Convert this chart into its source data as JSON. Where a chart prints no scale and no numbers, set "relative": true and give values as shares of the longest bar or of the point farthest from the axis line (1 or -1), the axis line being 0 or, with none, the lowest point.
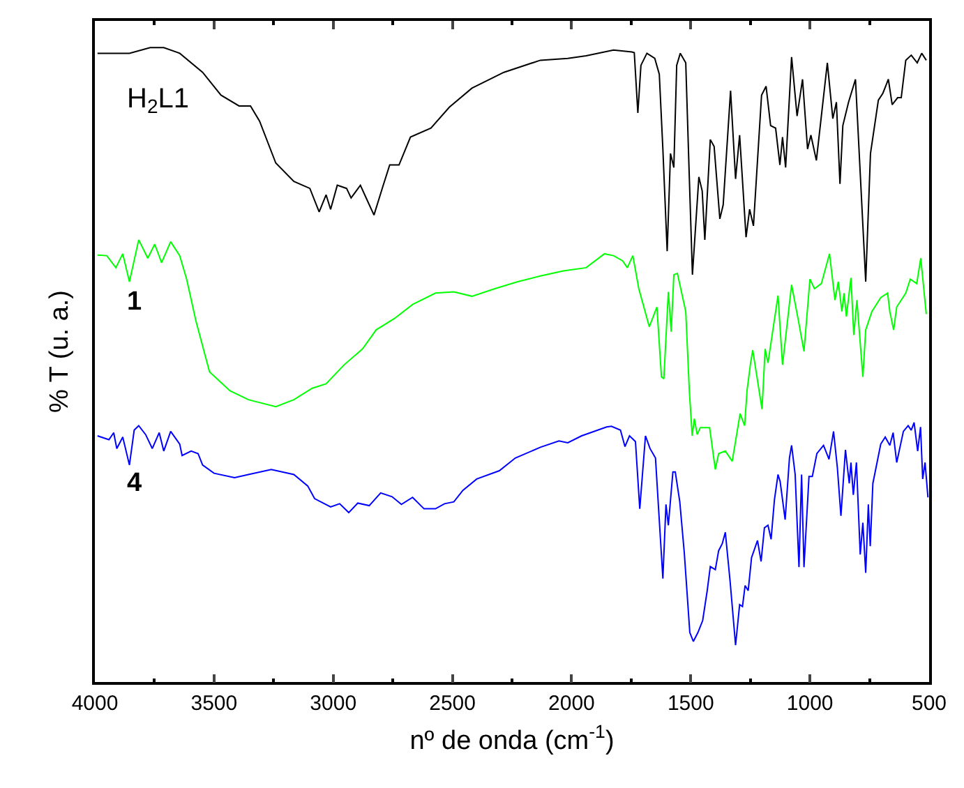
{
  "chart_data": {
    "type": "line",
    "relative": true,
    "xlabel": "nº de onda (cm$^{-1}$)",
    "ylabel": "% T (u. a.)",
    "xlim": [
      4000,
      500
    ],
    "xticks": [
      4000,
      3500,
      3000,
      2500,
      2000,
      1500,
      1000,
      500
    ],
    "legend": false,
    "marker": "none",
    "line_style": "solid",
    "series": [
      {
        "name": "H$_{2}$L1",
        "color": "#000000",
        "x": [
          3989,
          3855,
          3768,
          3711,
          3644,
          3548,
          3471,
          3395,
          3347,
          3309,
          3241,
          3165,
          3098,
          3059,
          3030,
          3011,
          2983,
          2944,
          2925,
          2886,
          2868,
          2829,
          2791,
          2763,
          2724,
          2676,
          2590,
          2513,
          2418,
          2284,
          2131,
          2016,
          1939,
          1824,
          1747,
          1737,
          1722,
          1709,
          1684,
          1651,
          1632,
          1617,
          1599,
          1585,
          1571,
          1559,
          1544,
          1521,
          1508,
          1493,
          1466,
          1452,
          1441,
          1418,
          1402,
          1378,
          1364,
          1333,
          1312,
          1295,
          1268,
          1253,
          1237,
          1203,
          1184,
          1165,
          1144,
          1126,
          1115,
          1102,
          1077,
          1054,
          1031,
          1010,
          996,
          973,
          927,
          904,
          889,
          874,
          862,
          838,
          809,
          766,
          746,
          713,
          694,
          671,
          655,
          632,
          617,
          598,
          575,
          550,
          531,
          512
        ],
        "values": [
          0.991,
          0.991,
          1.0,
          1.0,
          0.991,
          0.961,
          0.925,
          0.908,
          0.908,
          0.884,
          0.818,
          0.789,
          0.778,
          0.741,
          0.768,
          0.745,
          0.783,
          0.778,
          0.763,
          0.783,
          0.768,
          0.736,
          0.782,
          0.815,
          0.815,
          0.859,
          0.873,
          0.906,
          0.936,
          0.961,
          0.98,
          0.983,
          0.987,
          0.996,
          0.993,
          0.992,
          0.897,
          0.972,
          0.991,
          0.983,
          0.958,
          0.84,
          0.679,
          0.833,
          0.811,
          0.972,
          0.991,
          0.976,
          0.818,
          0.642,
          0.796,
          0.774,
          0.697,
          0.855,
          0.844,
          0.73,
          0.752,
          0.932,
          0.793,
          0.862,
          0.701,
          0.745,
          0.719,
          0.925,
          0.939,
          0.877,
          0.873,
          0.815,
          0.859,
          0.811,
          0.985,
          0.892,
          0.95,
          0.84,
          0.862,
          0.822,
          0.976,
          0.888,
          0.914,
          0.785,
          0.877,
          0.914,
          0.95,
          0.631,
          0.833,
          0.917,
          0.928,
          0.95,
          0.91,
          0.921,
          0.921,
          0.98,
          0.988,
          0.976,
          0.991,
          0.98
        ]
      },
      {
        "name": "1",
        "color": "#00ff00",
        "x": [
          3989,
          3950,
          3912,
          3883,
          3855,
          3816,
          3778,
          3749,
          3720,
          3682,
          3644,
          3615,
          3576,
          3519,
          3433,
          3356,
          3241,
          3165,
          3088,
          3030,
          2954,
          2877,
          2820,
          2743,
          2667,
          2571,
          2494,
          2418,
          2322,
          2226,
          2131,
          2035,
          1939,
          1862,
          1824,
          1786,
          1766,
          1743,
          1718,
          1674,
          1642,
          1623,
          1613,
          1594,
          1582,
          1571,
          1556,
          1521,
          1506,
          1494,
          1485,
          1473,
          1460,
          1421,
          1397,
          1383,
          1355,
          1326,
          1293,
          1274,
          1264,
          1249,
          1240,
          1201,
          1188,
          1176,
          1134,
          1115,
          1077,
          1048,
          1025,
          1000,
          981,
          952,
          918,
          895,
          881,
          866,
          857,
          847,
          828,
          816,
          803,
          778,
          766,
          740,
          703,
          674,
          665,
          649,
          636,
          598,
          579,
          552,
          535,
          512
        ],
        "values": [
          0.673,
          0.672,
          0.653,
          0.675,
          0.631,
          0.697,
          0.668,
          0.69,
          0.661,
          0.694,
          0.672,
          0.635,
          0.569,
          0.489,
          0.459,
          0.445,
          0.434,
          0.445,
          0.463,
          0.47,
          0.5,
          0.525,
          0.555,
          0.573,
          0.595,
          0.613,
          0.615,
          0.608,
          0.62,
          0.631,
          0.64,
          0.648,
          0.653,
          0.675,
          0.672,
          0.664,
          0.653,
          0.672,
          0.62,
          0.56,
          0.591,
          0.481,
          0.478,
          0.615,
          0.552,
          0.642,
          0.644,
          0.584,
          0.459,
          0.388,
          0.415,
          0.39,
          0.401,
          0.401,
          0.335,
          0.36,
          0.364,
          0.348,
          0.423,
          0.404,
          0.459,
          0.503,
          0.523,
          0.43,
          0.525,
          0.503,
          0.609,
          0.5,
          0.626,
          0.569,
          0.521,
          0.635,
          0.62,
          0.628,
          0.675,
          0.602,
          0.631,
          0.584,
          0.613,
          0.576,
          0.637,
          0.547,
          0.602,
          0.481,
          0.555,
          0.584,
          0.606,
          0.613,
          0.584,
          0.555,
          0.591,
          0.613,
          0.635,
          0.628,
          0.668,
          0.58
        ]
      },
      {
        "name": "4",
        "color": "#0000ff",
        "x": [
          3989,
          3941,
          3921,
          3908,
          3883,
          3855,
          3835,
          3816,
          3787,
          3759,
          3730,
          3711,
          3682,
          3644,
          3634,
          3596,
          3567,
          3548,
          3500,
          3414,
          3356,
          3260,
          3165,
          3107,
          3078,
          3011,
          2973,
          2935,
          2897,
          2849,
          2801,
          2753,
          2714,
          2667,
          2619,
          2571,
          2533,
          2494,
          2456,
          2398,
          2303,
          2236,
          2131,
          2053,
          2016,
          1958,
          1853,
          1833,
          1795,
          1776,
          1757,
          1732,
          1714,
          1690,
          1671,
          1648,
          1617,
          1604,
          1594,
          1575,
          1565,
          1546,
          1527,
          1504,
          1489,
          1470,
          1450,
          1431,
          1418,
          1397,
          1383,
          1368,
          1355,
          1335,
          1312,
          1295,
          1283,
          1272,
          1259,
          1245,
          1220,
          1205,
          1191,
          1176,
          1163,
          1149,
          1134,
          1125,
          1104,
          1086,
          1077,
          1062,
          1046,
          1035,
          1025,
          1004,
          990,
          971,
          943,
          920,
          901,
          885,
          870,
          851,
          835,
          828,
          818,
          805,
          789,
          778,
          766,
          755,
          747,
          736,
          703,
          684,
          665,
          651,
          636,
          608,
          588,
          575,
          563,
          548,
          536,
          527,
          517,
          505
        ],
        "values": [
          0.388,
          0.382,
          0.393,
          0.368,
          0.386,
          0.342,
          0.397,
          0.404,
          0.39,
          0.368,
          0.393,
          0.364,
          0.395,
          0.375,
          0.357,
          0.364,
          0.36,
          0.342,
          0.329,
          0.322,
          0.327,
          0.335,
          0.327,
          0.309,
          0.289,
          0.276,
          0.281,
          0.267,
          0.282,
          0.278,
          0.298,
          0.292,
          0.28,
          0.291,
          0.273,
          0.273,
          0.281,
          0.284,
          0.302,
          0.32,
          0.333,
          0.353,
          0.37,
          0.38,
          0.377,
          0.388,
          0.402,
          0.403,
          0.397,
          0.371,
          0.388,
          0.379,
          0.273,
          0.388,
          0.368,
          0.353,
          0.163,
          0.28,
          0.247,
          0.331,
          0.331,
          0.284,
          0.203,
          0.078,
          0.064,
          0.078,
          0.097,
          0.144,
          0.182,
          0.177,
          0.207,
          0.218,
          0.236,
          0.159,
          0.058,
          0.122,
          0.119,
          0.152,
          0.144,
          0.196,
          0.223,
          0.19,
          0.243,
          0.247,
          0.225,
          0.287,
          0.327,
          0.316,
          0.256,
          0.353,
          0.373,
          0.327,
          0.181,
          0.327,
          0.181,
          0.324,
          0.324,
          0.36,
          0.373,
          0.351,
          0.395,
          0.338,
          0.262,
          0.366,
          0.313,
          0.346,
          0.295,
          0.346,
          0.201,
          0.251,
          0.172,
          0.28,
          0.214,
          0.313,
          0.375,
          0.386,
          0.373,
          0.393,
          0.346,
          0.395,
          0.404,
          0.397,
          0.409,
          0.364,
          0.402,
          0.32,
          0.346,
          0.291
        ]
      }
    ]
  }
}
